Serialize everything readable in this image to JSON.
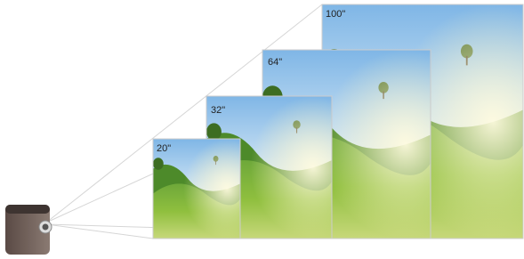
{
  "screens": [
    {
      "label": "20\""
    },
    {
      "label": "32\""
    },
    {
      "label": "64\""
    },
    {
      "label": "100\""
    }
  ]
}
